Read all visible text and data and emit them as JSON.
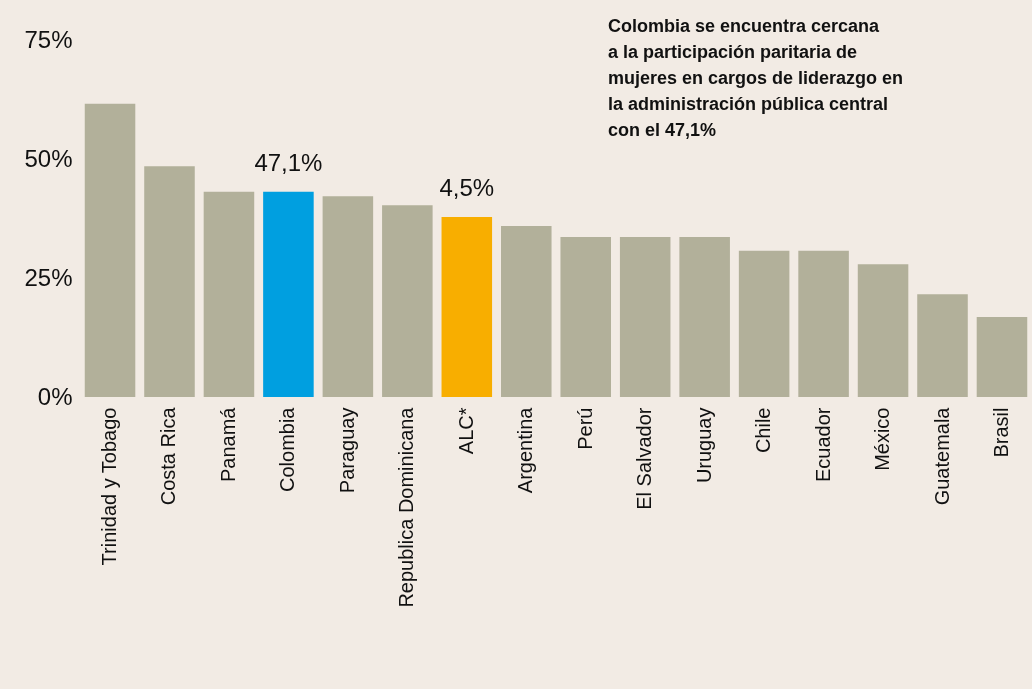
{
  "chart_data": {
    "type": "bar",
    "categories": [
      "Trinidad y Tobago",
      "Costa Rica",
      "Panamá",
      "Colombia",
      "Paraguay",
      "Republica Dominicana",
      "ALC*",
      "Argentina",
      "Perú",
      "El Salvador",
      "Uruguay",
      "Chile",
      "Ecuador",
      "México",
      "Guatemala",
      "Brasil"
    ],
    "values": [
      61.6,
      48.5,
      43.1,
      43.1,
      42.2,
      40.3,
      37.8,
      35.9,
      33.6,
      33.6,
      33.6,
      30.7,
      30.7,
      27.9,
      21.6,
      16.8
    ],
    "colors": [
      "#b2b09a",
      "#b2b09a",
      "#b2b09a",
      "#009fe0",
      "#b2b09a",
      "#b2b09a",
      "#f8ae00",
      "#b2b09a",
      "#b2b09a",
      "#b2b09a",
      "#b2b09a",
      "#b2b09a",
      "#b2b09a",
      "#b2b09a",
      "#b2b09a",
      "#b2b09a"
    ],
    "ylim": [
      0,
      75
    ],
    "yticks": [
      {
        "value": 0,
        "label": "0%"
      },
      {
        "value": 25,
        "label": "25%"
      },
      {
        "value": 50,
        "label": "50%"
      },
      {
        "value": 75,
        "label": "75%"
      }
    ],
    "grid": false,
    "annotations": [
      {
        "text": "47,1%",
        "x": "Colombia",
        "y": 43.1
      },
      {
        "text": "4,5%",
        "x": "ALC*",
        "y": 37.8
      },
      "Colombia se encuentra cercana\na la participación paritaria de\nmujeres en cargos de liderazgo en\nla administración pública central\ncon el 47,1%"
    ]
  }
}
